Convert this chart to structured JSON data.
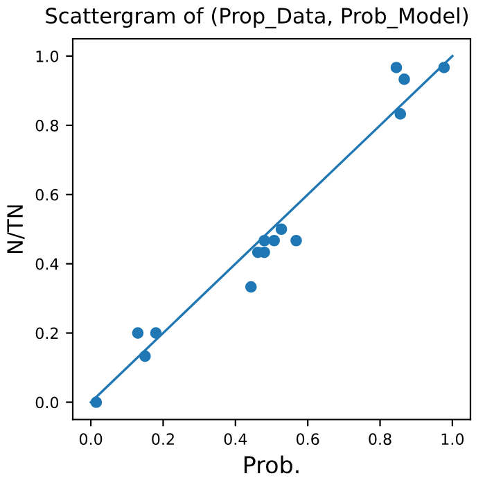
{
  "chart_data": {
    "type": "scatter",
    "title": "Scattergram of (Prop_Data, Prob_Model)",
    "xlabel": "Prob.",
    "ylabel": "N/TN",
    "series": [
      {
        "color": "#1f77b4",
        "marker": "circle",
        "x": [
          0.015,
          0.13,
          0.15,
          0.18,
          0.443,
          0.462,
          0.48,
          0.48,
          0.507,
          0.527,
          0.568,
          0.845,
          0.856,
          0.867,
          0.977
        ],
        "values": [
          0.0,
          0.2,
          0.133,
          0.2,
          0.333,
          0.433,
          0.433,
          0.467,
          0.467,
          0.5,
          0.467,
          0.967,
          0.833,
          0.933,
          0.967
        ]
      },
      {
        "type": "line",
        "color": "#1f77b4",
        "marker": "none",
        "x": [
          0.0,
          1.0
        ],
        "values": [
          0.0,
          1.0
        ]
      }
    ],
    "xlim": [
      -0.05,
      1.05
    ],
    "ylim": [
      -0.05,
      1.05
    ],
    "xticks": [
      {
        "value": 0,
        "label": "0.0"
      },
      0.2,
      0.4,
      0.6,
      0.8,
      {
        "value": 1,
        "label": "1.0"
      }
    ],
    "yticks": [
      {
        "value": 0,
        "label": "0.0"
      },
      0.2,
      0.4,
      0.6,
      0.8,
      {
        "value": 1,
        "label": "1.0"
      }
    ],
    "grid": false
  }
}
